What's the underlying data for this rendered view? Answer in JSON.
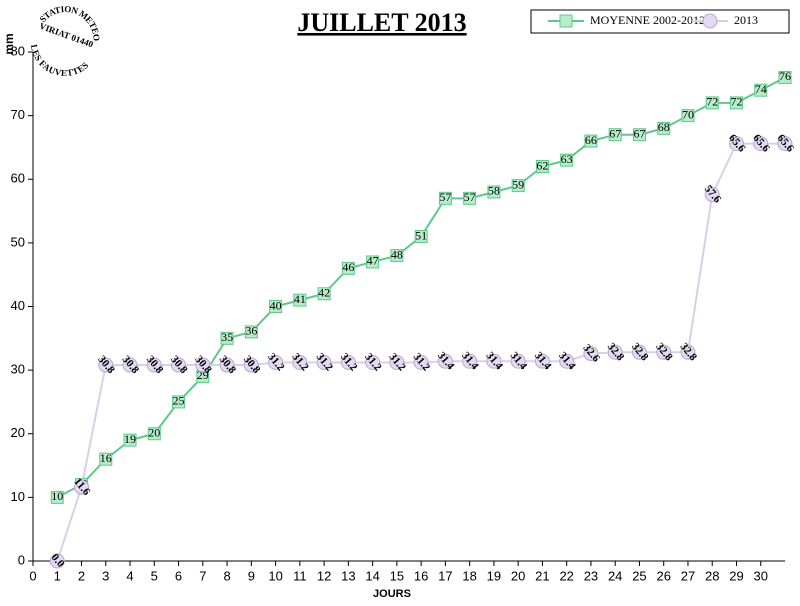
{
  "chart_data": {
    "type": "line",
    "title": "JUILLET 2013",
    "ylabel": "mm",
    "xlabel": "JOURS",
    "annotations": [
      "STATION METEO",
      "VIRIAT 01440",
      "LES FAUVETTES"
    ],
    "x": [
      1,
      2,
      3,
      4,
      5,
      6,
      7,
      8,
      9,
      10,
      11,
      12,
      13,
      14,
      15,
      16,
      17,
      18,
      19,
      20,
      21,
      22,
      23,
      24,
      25,
      26,
      27,
      28,
      29,
      30,
      31
    ],
    "series": [
      {
        "name": "MOYENNE 2002-2012",
        "color": "#5cc98a",
        "marker": "square",
        "values": [
          10,
          12,
          16,
          19,
          20,
          25,
          29,
          35,
          36,
          40,
          41,
          42,
          46,
          47,
          48,
          51,
          57,
          57,
          58,
          59,
          62,
          63,
          66,
          67,
          67,
          68,
          70,
          72,
          72,
          74,
          76
        ]
      },
      {
        "name": "2013",
        "color": "#d9cfe8",
        "marker": "circle",
        "values": [
          0,
          11.6,
          30.8,
          30.8,
          30.8,
          30.8,
          30.8,
          30.8,
          30.8,
          31.2,
          31.2,
          31.2,
          31.2,
          31.2,
          31.2,
          31.2,
          31.4,
          31.4,
          31.4,
          31.4,
          31.4,
          31.4,
          32.6,
          32.8,
          32.8,
          32.8,
          32.8,
          57.6,
          65.6,
          65.6,
          65.6
        ],
        "value_labels": [
          "0.0",
          "11.6",
          "30.8",
          "30.8",
          "30.8",
          "30.8",
          "30.8",
          "30.8",
          "30.8",
          "31.2",
          "31.2",
          "31.2",
          "31.2",
          "31.2",
          "31.2",
          "31.2",
          "31.4",
          "31.4",
          "31.4",
          "31.4",
          "31.4",
          "31.4",
          "32.6",
          "32.8",
          "32.8",
          "32.8",
          "32.8",
          "57.6",
          "65.6",
          "65.6",
          "65.6"
        ]
      }
    ],
    "xlim": [
      0,
      31
    ],
    "xticks": [
      0,
      1,
      2,
      3,
      4,
      5,
      6,
      7,
      8,
      9,
      10,
      11,
      12,
      13,
      14,
      15,
      16,
      17,
      18,
      19,
      20,
      21,
      22,
      23,
      24,
      25,
      26,
      27,
      28,
      29,
      30
    ],
    "ylim": [
      0,
      80
    ],
    "yticks": [
      0,
      10,
      20,
      30,
      40,
      50,
      60,
      70,
      80
    ],
    "grid": false,
    "legend": "top-right"
  }
}
